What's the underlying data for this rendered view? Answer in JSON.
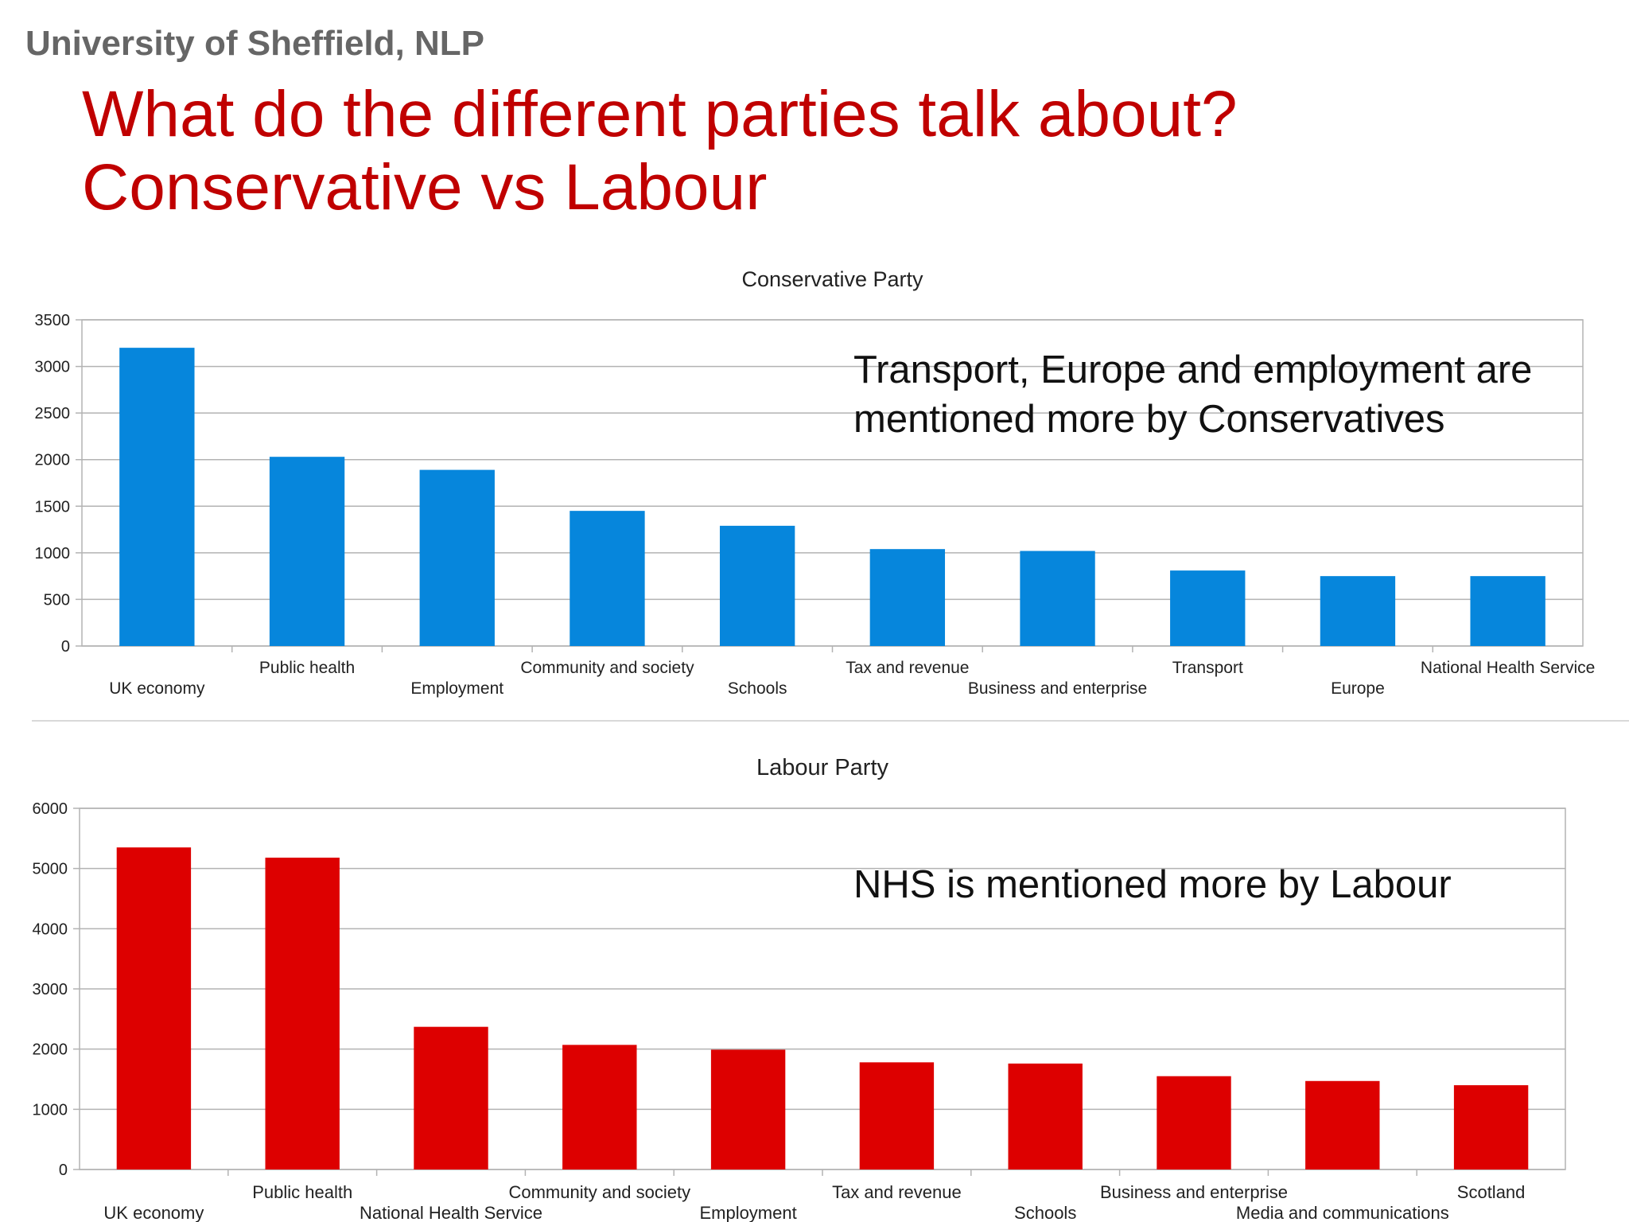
{
  "header": {
    "org": "University of Sheffield, NLP",
    "title_line1": "What do the different parties talk about?",
    "title_line2": "Conservative vs Labour"
  },
  "callouts": {
    "conservative": "Transport, Europe and employment are mentioned more by Conservatives",
    "labour": "NHS is mentioned more by Labour"
  },
  "chart_data": [
    {
      "type": "bar",
      "title": "Conservative Party",
      "categories": [
        "UK economy",
        "Public health",
        "Employment",
        "Community and society",
        "Schools",
        "Tax and revenue",
        "Business and enterprise",
        "Transport",
        "Europe",
        "National Health Service"
      ],
      "values": [
        3200,
        2030,
        1890,
        1450,
        1290,
        1040,
        1020,
        810,
        750,
        750
      ],
      "ylim": [
        0,
        3500
      ],
      "yticks": [
        0,
        500,
        1000,
        1500,
        2000,
        2500,
        3000,
        3500
      ],
      "grid": true,
      "color": "#0686dc"
    },
    {
      "type": "bar",
      "title": "Labour Party",
      "categories": [
        "UK economy",
        "Public health",
        "National Health Service",
        "Community and society",
        "Employment",
        "Tax and revenue",
        "Schools",
        "Business and enterprise",
        "Media and communications",
        "Scotland"
      ],
      "values": [
        5350,
        5180,
        2370,
        2070,
        1990,
        1780,
        1760,
        1550,
        1470,
        1400
      ],
      "ylim": [
        0,
        6000
      ],
      "yticks": [
        0,
        1000,
        2000,
        3000,
        4000,
        5000,
        6000
      ],
      "grid": true,
      "color": "#dd0000"
    }
  ]
}
